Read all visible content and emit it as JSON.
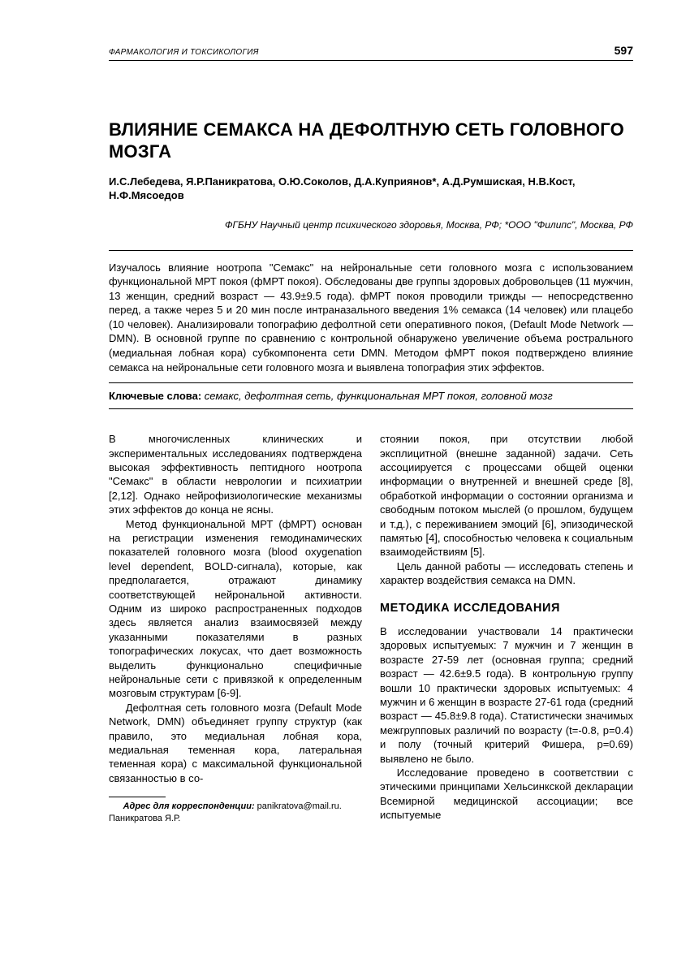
{
  "header": {
    "rubric": "ФАРМАКОЛОГИЯ И ТОКСИКОЛОГИЯ",
    "page_number": "597"
  },
  "title": "ВЛИЯНИЕ СЕМАКСА НА ДЕФОЛТНУЮ СЕТЬ ГОЛОВНОГО МОЗГА",
  "authors": "И.С.Лебедева, Я.Р.Паникратова, О.Ю.Соколов, Д.А.Куприянов*, А.Д.Румшиская, Н.В.Кост, Н.Ф.Мясоедов",
  "affiliation": "ФГБНУ Научный центр психического здоровья, Москва, РФ; *ООО \"Филипс\", Москва, РФ",
  "abstract": "Изучалось влияние ноотропа \"Семакс\" на нейрональные сети головного мозга с использованием функциональной МРТ покоя (фМРТ покоя). Обследованы две группы здоровых добровольцев (11 мужчин, 13 женщин, средний возраст — 43.9±9.5 года). фМРТ покоя проводили трижды — непосредственно перед, а также через 5 и 20 мин после интраназального введения 1% семакса (14 человек) или плацебо (10 человек). Анализировали топографию дефолтной сети оперативного покоя, (Default Mode Network — DMN). В основной группе по сравнению с контрольной обнаружено увеличение объема рострального (медиальная лобная кора) субкомпонента сети DMN. Методом фМРТ покоя подтверждено влияние семакса на нейрональные сети головного мозга и выявлена топография этих эффектов.",
  "keywords_label": "Ключевые слова:",
  "keywords_text": " семакс, дефолтная сеть, функциональная МРТ покоя, головной мозг",
  "body": {
    "p1": "В многочисленных клинических и экспериментальных исследованиях подтверждена высокая эффективность пептидного ноотропа \"Семакс\" в области неврологии и психиатрии [2,12]. Однако нейрофизиологические механизмы этих эффектов до конца не ясны.",
    "p2": "Метод функциональной МРТ (фМРТ) основан на регистрации изменения гемодинамических показателей головного мозга (blood oxygenation level dependent, BOLD-сигнала), которые, как предполагается, отражают динамику соответствующей нейрональной активности. Одним из широко распространенных подходов здесь является анализ взаимосвязей между указанными показателями в разных топографических локусах, что дает возможность выделить функционально специфичные нейрональные сети с привязкой к определенным мозговым структурам [6-9].",
    "p3": "Дефолтная сеть головного мозга (Default Mode Network, DMN) объединяет группу структур (как правило, это медиальная лобная кора, медиальная теменная кора, латеральная теменная кора) с максимальной функциональной связанностью в со-",
    "p4": "стоянии покоя, при отсутствии любой эксплицитной (внешне заданной) задачи. Сеть ассоциируется с процессами общей оценки информации о внутренней и внешней среде [8], обработкой информации о состоянии организма и свободным потоком мыслей (о прошлом, будущем и т.д.), с переживанием эмоций [6], эпизодической памятью [4], способностью человека к социальным взаимодействиям [5].",
    "p5": "Цель данной работы — исследовать степень и характер воздействия семакса на DMN.",
    "section": "МЕТОДИКА  ИССЛЕДОВАНИЯ",
    "p6": "В исследовании участвовали 14 практически здоровых испытуемых: 7 мужчин и 7 женщин в возрасте 27-59 лет (основная группа; средний возраст — 42.6±9.5 года). В контрольную группу вошли 10 практически здоровых испытуемых: 4 мужчин и 6 женщин в возрасте 27-61 года (средний возраст — 45.8±9.8 года). Статистически значимых межгрупповых различий по возрасту (t=-0.8, p=0.4) и полу (точный критерий Фишера, p=0.69) выявлено не было.",
    "p7": "Исследование проведено в соответствии с этическими принципами Хельсинкской декларации Всемирной медицинской ассоциации; все испытуемые"
  },
  "footnote": {
    "label": "Адрес для корреспонденции:",
    "text": " panikratova@mail.ru. Паникратова Я.Р."
  },
  "colors": {
    "text": "#000000",
    "background": "#ffffff",
    "rule": "#000000"
  },
  "typography": {
    "title_fontsize": 22,
    "body_fontsize": 13,
    "rubric_fontsize": 10,
    "footnote_fontsize": 11
  }
}
